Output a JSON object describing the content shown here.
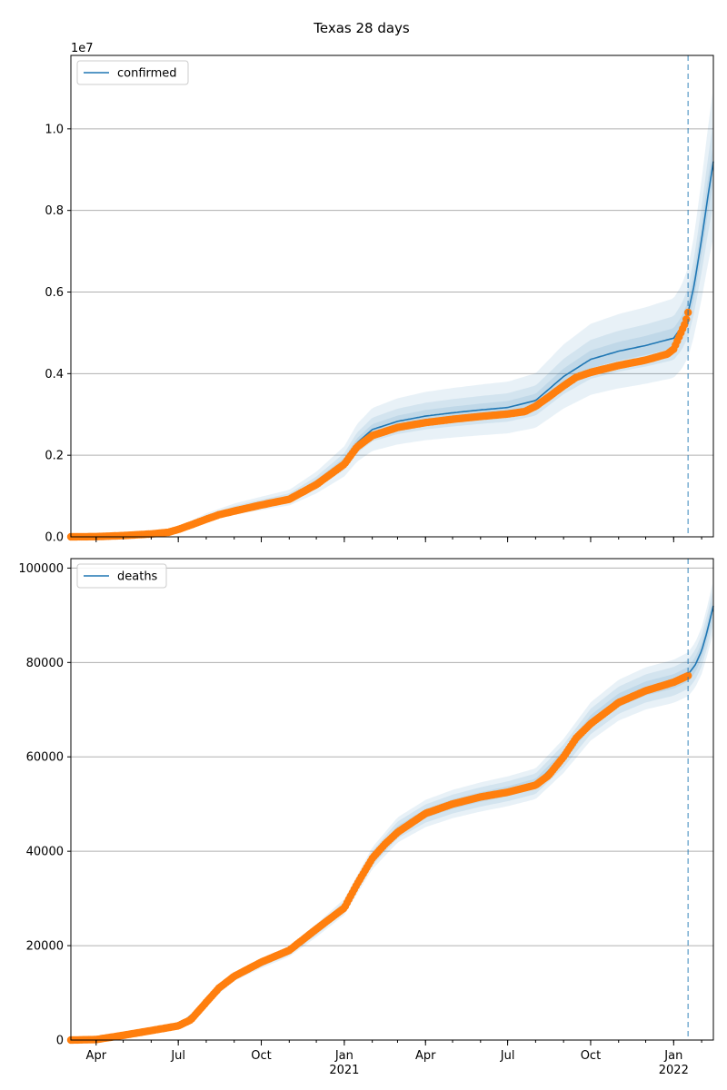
{
  "figure": {
    "title": "Texas 28 days"
  },
  "colors": {
    "model": "#1f77b4",
    "observed": "#ff7f0e",
    "band": "#1f77b4",
    "grid": "#b0b0b0",
    "cutoff": "#1f77b4"
  },
  "x_axis": {
    "ticks": [
      {
        "date": "2020-04-01",
        "label": "Apr",
        "year": ""
      },
      {
        "date": "2020-07-01",
        "label": "Jul",
        "year": ""
      },
      {
        "date": "2020-10-01",
        "label": "Oct",
        "year": ""
      },
      {
        "date": "2021-01-01",
        "label": "Jan",
        "year": "2021"
      },
      {
        "date": "2021-04-01",
        "label": "Apr",
        "year": ""
      },
      {
        "date": "2021-07-01",
        "label": "Jul",
        "year": ""
      },
      {
        "date": "2021-10-01",
        "label": "Oct",
        "year": ""
      },
      {
        "date": "2022-01-01",
        "label": "Jan",
        "year": "2022"
      }
    ],
    "range": [
      "2020-03-04",
      "2022-02-14"
    ],
    "cutoff_date": "2022-01-17"
  },
  "chart_data": [
    {
      "type": "line",
      "legend": "confirmed",
      "legend_position": "upper-left",
      "grid": "y",
      "y_offset_label": "1e7",
      "ylim": [
        0,
        11800000
      ],
      "yticks": [
        {
          "value": 0,
          "label": "0.0"
        },
        {
          "value": 2000000,
          "label": "0.2"
        },
        {
          "value": 4000000,
          "label": "0.4"
        },
        {
          "value": 6000000,
          "label": "0.6"
        },
        {
          "value": 8000000,
          "label": "0.8"
        },
        {
          "value": 10000000,
          "label": "1.0"
        }
      ],
      "observed": [
        [
          "2020-03-04",
          0
        ],
        [
          "2020-04-01",
          5000
        ],
        [
          "2020-05-01",
          30000
        ],
        [
          "2020-06-01",
          70000
        ],
        [
          "2020-06-20",
          110000
        ],
        [
          "2020-07-01",
          180000
        ],
        [
          "2020-07-15",
          290000
        ],
        [
          "2020-08-01",
          430000
        ],
        [
          "2020-08-15",
          540000
        ],
        [
          "2020-09-01",
          630000
        ],
        [
          "2020-10-01",
          780000
        ],
        [
          "2020-11-01",
          920000
        ],
        [
          "2020-12-01",
          1280000
        ],
        [
          "2021-01-01",
          1780000
        ],
        [
          "2021-01-15",
          2200000
        ],
        [
          "2021-02-01",
          2480000
        ],
        [
          "2021-03-01",
          2680000
        ],
        [
          "2021-04-01",
          2800000
        ],
        [
          "2021-05-01",
          2880000
        ],
        [
          "2021-06-01",
          2950000
        ],
        [
          "2021-07-01",
          3010000
        ],
        [
          "2021-07-20",
          3070000
        ],
        [
          "2021-08-01",
          3200000
        ],
        [
          "2021-08-15",
          3420000
        ],
        [
          "2021-09-01",
          3700000
        ],
        [
          "2021-09-15",
          3910000
        ],
        [
          "2021-10-01",
          4030000
        ],
        [
          "2021-11-01",
          4200000
        ],
        [
          "2021-12-01",
          4330000
        ],
        [
          "2021-12-25",
          4480000
        ],
        [
          "2022-01-01",
          4600000
        ],
        [
          "2022-01-08",
          4950000
        ],
        [
          "2022-01-14",
          5250000
        ],
        [
          "2022-01-17",
          5500000
        ]
      ],
      "model": [
        [
          "2020-03-04",
          0
        ],
        [
          "2020-04-01",
          6000
        ],
        [
          "2020-05-01",
          32000
        ],
        [
          "2020-06-01",
          75000
        ],
        [
          "2020-07-01",
          200000
        ],
        [
          "2020-08-01",
          480000
        ],
        [
          "2020-09-01",
          680000
        ],
        [
          "2020-10-01",
          820000
        ],
        [
          "2020-11-01",
          960000
        ],
        [
          "2020-12-01",
          1330000
        ],
        [
          "2021-01-01",
          1850000
        ],
        [
          "2021-01-15",
          2300000
        ],
        [
          "2021-02-01",
          2630000
        ],
        [
          "2021-03-01",
          2830000
        ],
        [
          "2021-04-01",
          2960000
        ],
        [
          "2021-05-01",
          3040000
        ],
        [
          "2021-06-01",
          3110000
        ],
        [
          "2021-07-01",
          3170000
        ],
        [
          "2021-08-01",
          3340000
        ],
        [
          "2021-09-01",
          3930000
        ],
        [
          "2021-10-01",
          4350000
        ],
        [
          "2021-11-01",
          4550000
        ],
        [
          "2021-12-01",
          4690000
        ],
        [
          "2022-01-01",
          4870000
        ],
        [
          "2022-01-10",
          5150000
        ],
        [
          "2022-01-17",
          5500000
        ],
        [
          "2022-01-24",
          6200000
        ],
        [
          "2022-02-01",
          7300000
        ],
        [
          "2022-02-07",
          8200000
        ],
        [
          "2022-02-14",
          9200000
        ]
      ],
      "bands": [
        0.05,
        0.11,
        0.2
      ]
    },
    {
      "type": "line",
      "legend": "deaths",
      "legend_position": "upper-left",
      "grid": "y",
      "ylim": [
        0,
        102000
      ],
      "yticks": [
        {
          "value": 0,
          "label": "0"
        },
        {
          "value": 20000,
          "label": "20000"
        },
        {
          "value": 40000,
          "label": "40000"
        },
        {
          "value": 60000,
          "label": "60000"
        },
        {
          "value": 80000,
          "label": "80000"
        },
        {
          "value": 100000,
          "label": "100000"
        }
      ],
      "observed": [
        [
          "2020-03-04",
          0
        ],
        [
          "2020-04-01",
          100
        ],
        [
          "2020-05-01",
          1000
        ],
        [
          "2020-06-01",
          2000
        ],
        [
          "2020-07-01",
          3000
        ],
        [
          "2020-07-15",
          4300
        ],
        [
          "2020-08-01",
          8000
        ],
        [
          "2020-08-15",
          11000
        ],
        [
          "2020-09-01",
          13500
        ],
        [
          "2020-10-01",
          16500
        ],
        [
          "2020-11-01",
          19000
        ],
        [
          "2020-12-01",
          23500
        ],
        [
          "2021-01-01",
          28000
        ],
        [
          "2021-01-15",
          33000
        ],
        [
          "2021-02-01",
          38500
        ],
        [
          "2021-02-15",
          41500
        ],
        [
          "2021-03-01",
          44000
        ],
        [
          "2021-04-01",
          48000
        ],
        [
          "2021-05-01",
          50000
        ],
        [
          "2021-06-01",
          51500
        ],
        [
          "2021-07-01",
          52500
        ],
        [
          "2021-08-01",
          54000
        ],
        [
          "2021-08-15",
          56000
        ],
        [
          "2021-09-01",
          60000
        ],
        [
          "2021-09-15",
          64000
        ],
        [
          "2021-10-01",
          67000
        ],
        [
          "2021-11-01",
          71500
        ],
        [
          "2021-12-01",
          74000
        ],
        [
          "2022-01-01",
          75800
        ],
        [
          "2022-01-17",
          77200
        ]
      ],
      "model": [
        [
          "2020-03-04",
          0
        ],
        [
          "2020-04-01",
          100
        ],
        [
          "2020-05-01",
          1000
        ],
        [
          "2020-06-01",
          2000
        ],
        [
          "2020-07-01",
          3000
        ],
        [
          "2020-08-01",
          8000
        ],
        [
          "2020-09-01",
          13300
        ],
        [
          "2020-10-01",
          16200
        ],
        [
          "2020-11-01",
          18800
        ],
        [
          "2020-12-01",
          23200
        ],
        [
          "2021-01-01",
          28200
        ],
        [
          "2021-02-01",
          38500
        ],
        [
          "2021-03-01",
          44500
        ],
        [
          "2021-04-01",
          48000
        ],
        [
          "2021-05-01",
          50000
        ],
        [
          "2021-06-01",
          51500
        ],
        [
          "2021-07-01",
          52700
        ],
        [
          "2021-08-01",
          54300
        ],
        [
          "2021-09-01",
          60200
        ],
        [
          "2021-10-01",
          67500
        ],
        [
          "2021-11-01",
          72000
        ],
        [
          "2021-12-01",
          74500
        ],
        [
          "2022-01-01",
          76000
        ],
        [
          "2022-01-17",
          77500
        ],
        [
          "2022-01-25",
          79500
        ],
        [
          "2022-02-01",
          82500
        ],
        [
          "2022-02-07",
          86500
        ],
        [
          "2022-02-14",
          92000
        ]
      ],
      "bands": [
        0.02,
        0.04,
        0.06
      ]
    }
  ]
}
